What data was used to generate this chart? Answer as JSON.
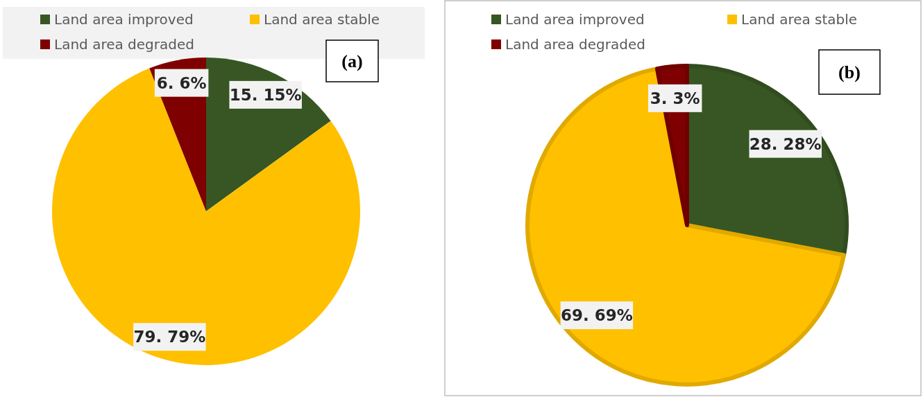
{
  "chart_data": [
    {
      "type": "pie",
      "categories": [
        "Land area improved",
        "Land area stable",
        "Land area degraded"
      ],
      "values": [
        15,
        79,
        6
      ],
      "colors": [
        "#375623",
        "#ffc000",
        "#7f0000"
      ],
      "value_labels": [
        "15. 15%",
        "79. 79%",
        "6. 6%"
      ],
      "legend": "top",
      "annotations": [
        "(a)"
      ]
    },
    {
      "type": "pie",
      "categories": [
        "Land area improved",
        "Land area stable",
        "Land area degraded"
      ],
      "values": [
        28,
        69,
        3
      ],
      "colors": [
        "#375623",
        "#ffc000",
        "#7f0000"
      ],
      "value_labels": [
        "28. 28%",
        "69. 69%",
        "3. 3%"
      ],
      "legend": "top",
      "annotations": [
        "(b)"
      ]
    }
  ]
}
